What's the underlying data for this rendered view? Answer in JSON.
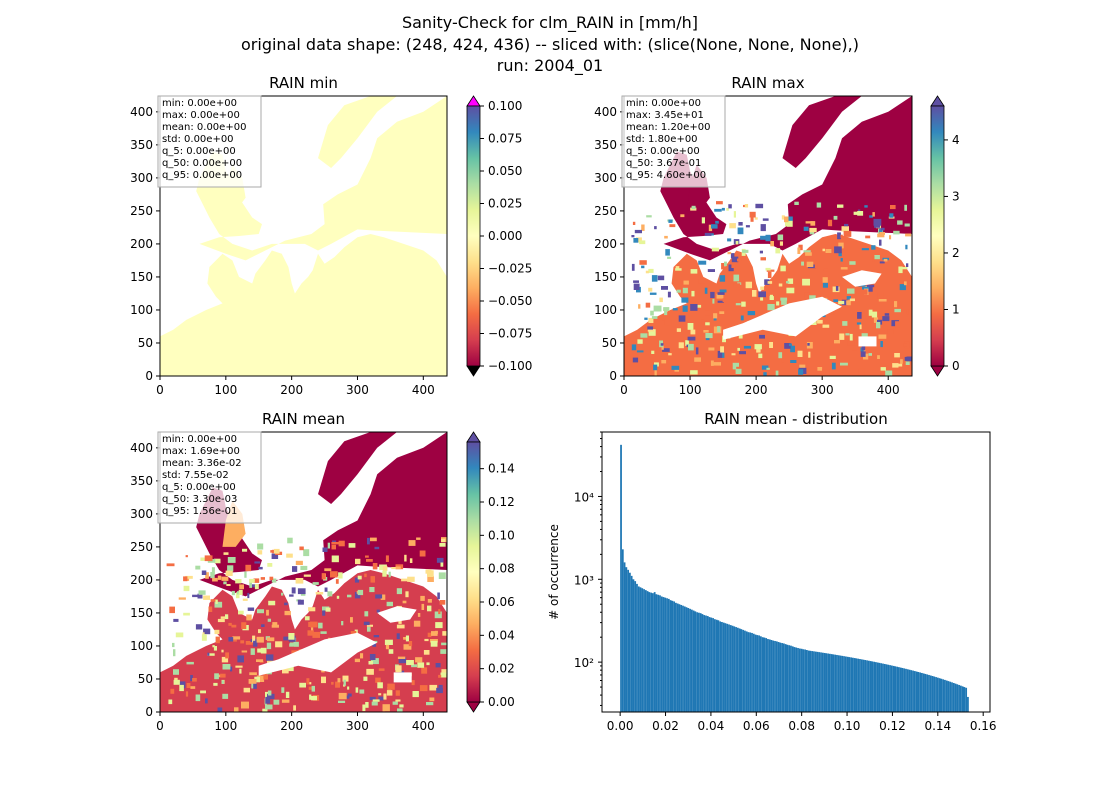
{
  "figure": {
    "title_lines": [
      "Sanity-Check for clm_RAIN in [mm/h]",
      "original data shape: (248, 424, 436) -- sliced with: (slice(None, None, None),)",
      "run: 2004_01"
    ]
  },
  "colors": {
    "land_zero": "#ffffbf",
    "background": "#ffffff",
    "bar": "#1f77b4",
    "over_magenta": "#ff00ff",
    "spectral_low": "#9e0142",
    "spectral_high": "#5e4fa2"
  },
  "chart_data": [
    {
      "type": "heatmap",
      "title": "RAIN min",
      "colormap": "Spectral",
      "xlim": [
        0,
        436
      ],
      "ylim": [
        0,
        424
      ],
      "xticks": [
        "0",
        "100",
        "200",
        "300",
        "400"
      ],
      "yticks": [
        "0",
        "50",
        "100",
        "150",
        "200",
        "250",
        "300",
        "350",
        "400"
      ],
      "colorbar": {
        "range": [
          -0.1,
          0.1
        ],
        "ticks": [
          "0.100",
          "0.075",
          "0.050",
          "0.025",
          "0.000",
          "−0.025",
          "−0.050",
          "−0.075",
          "−0.100"
        ],
        "extend": "both"
      },
      "stats": [
        "min: 0.00e+00",
        "max: 0.00e+00",
        "mean: 0.00e+00",
        "std: 0.00e+00",
        "q_5: 0.00e+00",
        "q_50: 0.00e+00",
        "q_95: 0.00e+00"
      ]
    },
    {
      "type": "heatmap",
      "title": "RAIN max",
      "colormap": "Spectral",
      "xlim": [
        0,
        436
      ],
      "ylim": [
        0,
        424
      ],
      "xticks": [
        "0",
        "100",
        "200",
        "300",
        "400"
      ],
      "yticks": [
        "0",
        "50",
        "100",
        "150",
        "200",
        "250",
        "300",
        "350",
        "400"
      ],
      "colorbar": {
        "range": [
          0,
          4.6
        ],
        "ticks": [
          "4",
          "3",
          "2",
          "1",
          "0"
        ],
        "extend": "both"
      },
      "stats": [
        "min: 0.00e+00",
        "max: 3.45e+01",
        "mean: 1.20e+00",
        "std: 1.80e+00",
        "q_5: 0.00e+00",
        "q_50: 3.67e-01",
        "q_95: 4.60e+00"
      ]
    },
    {
      "type": "heatmap",
      "title": "RAIN mean",
      "colormap": "Spectral",
      "xlim": [
        0,
        436
      ],
      "ylim": [
        0,
        424
      ],
      "xticks": [
        "0",
        "100",
        "200",
        "300",
        "400"
      ],
      "yticks": [
        "0",
        "50",
        "100",
        "150",
        "200",
        "250",
        "300",
        "350",
        "400"
      ],
      "colorbar": {
        "range": [
          0,
          0.156
        ],
        "ticks": [
          "0.14",
          "0.12",
          "0.10",
          "0.08",
          "0.06",
          "0.04",
          "0.02",
          "0.00"
        ],
        "extend": "both"
      },
      "stats": [
        "min: 0.00e+00",
        "max: 1.69e+00",
        "mean: 3.36e-02",
        "std: 7.55e-02",
        "q_5: 0.00e+00",
        "q_50: 3.30e-03",
        "q_95: 1.56e-01"
      ]
    },
    {
      "type": "bar",
      "title": "RAIN mean - distribution",
      "ylabel": "# of occurrence",
      "xlabel": "",
      "yscale": "log",
      "xlim": [
        -0.008,
        0.163
      ],
      "ylim": [
        25,
        60000
      ],
      "xticks": [
        "0.00",
        "0.02",
        "0.04",
        "0.06",
        "0.08",
        "0.10",
        "0.12",
        "0.14",
        "0.16"
      ],
      "yticks": [
        "10²",
        "10³",
        "10⁴"
      ],
      "bin_start": 0.0,
      "bin_width": 0.00078,
      "values": [
        42000,
        2300,
        1600,
        1400,
        1300,
        1200,
        1100,
        1000,
        950,
        880,
        820,
        800,
        780,
        760,
        740,
        720,
        700,
        690,
        680,
        700,
        660,
        650,
        640,
        620,
        610,
        600,
        590,
        580,
        560,
        550,
        540,
        520,
        510,
        500,
        490,
        480,
        470,
        460,
        450,
        440,
        430,
        420,
        410,
        400,
        395,
        390,
        380,
        370,
        365,
        360,
        350,
        345,
        340,
        330,
        325,
        320,
        310,
        305,
        300,
        295,
        290,
        285,
        280,
        275,
        270,
        265,
        260,
        255,
        250,
        245,
        240,
        235,
        230,
        228,
        225,
        220,
        215,
        212,
        210,
        205,
        200,
        198,
        195,
        190,
        188,
        185,
        182,
        180,
        178,
        175,
        172,
        170,
        168,
        165,
        162,
        160,
        158,
        155,
        152,
        150,
        148,
        146,
        145,
        143,
        142,
        140,
        138,
        137,
        136,
        135,
        134,
        133,
        132,
        131,
        130,
        129,
        128,
        127,
        126,
        125,
        124,
        123,
        122,
        121,
        120,
        119,
        118,
        117,
        116,
        115,
        114,
        113,
        112,
        111,
        110,
        109,
        108,
        107,
        106,
        105,
        104,
        103,
        102,
        101,
        100,
        99,
        98,
        97,
        96,
        95,
        94,
        93,
        92,
        91,
        90,
        89,
        88,
        87,
        86,
        85,
        84,
        83,
        82,
        81,
        80,
        79,
        78,
        77,
        76,
        75,
        74,
        73,
        72,
        71,
        70,
        69,
        68,
        67,
        66,
        65,
        64,
        63,
        62,
        61,
        60,
        59,
        58,
        57,
        56,
        55,
        54,
        53,
        52,
        51,
        50,
        49,
        38
      ]
    }
  ]
}
